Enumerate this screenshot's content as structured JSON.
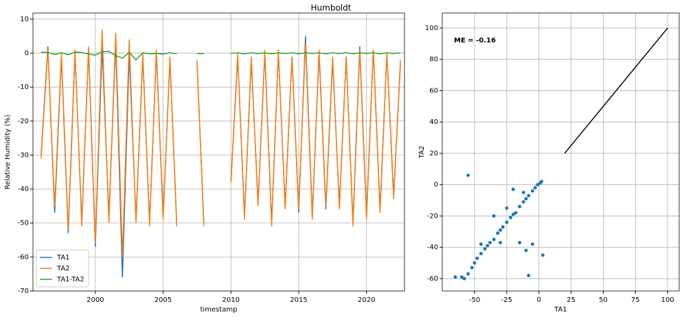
{
  "chart_data": [
    {
      "type": "line",
      "title": "Humboldt",
      "xlabel": "timestamp",
      "ylabel": "Relative Humidity (%)",
      "x": [
        1996,
        1996.5,
        1997,
        1997.5,
        1998,
        1998.5,
        1999,
        1999.5,
        2000,
        2000.5,
        2001,
        2001.5,
        2002,
        2002.5,
        2003,
        2003.5,
        2004,
        2004.5,
        2005,
        2005.5,
        2006,
        2006.5,
        2007,
        2007.5,
        2008,
        2008.5,
        2009,
        2009.5,
        2010,
        2010.5,
        2011,
        2011.5,
        2012,
        2012.5,
        2013,
        2013.5,
        2014,
        2014.5,
        2015,
        2015.5,
        2016,
        2016.5,
        2017,
        2017.5,
        2018,
        2018.5,
        2019,
        2019.5,
        2020,
        2020.5,
        2021,
        2021.5,
        2022,
        2022.5
      ],
      "series": [
        {
          "name": "TA1",
          "color": "#1f77b4",
          "values": [
            -30,
            2,
            -47,
            -1,
            -53,
            0,
            -50,
            1,
            -57,
            2,
            -48,
            3,
            -66,
            0,
            -49,
            -1,
            -50,
            0,
            -48,
            -2,
            -50,
            null,
            null,
            -3,
            -50,
            null,
            null,
            null,
            -38,
            -1,
            -48,
            -2,
            -44,
            0,
            -50,
            0,
            -45,
            -1,
            -47,
            5,
            -48,
            0,
            -46,
            -2,
            -45,
            -1,
            -50,
            2,
            -48,
            1,
            -46,
            0,
            -42,
            -3
          ]
        },
        {
          "name": "TA2",
          "color": "#ff7f0e",
          "values": [
            -31,
            1,
            -45,
            0,
            -52,
            1,
            -51,
            2,
            -56,
            7,
            -50,
            6,
            -60,
            4,
            -50,
            0,
            -51,
            1,
            -49,
            -1,
            -51,
            null,
            null,
            -2,
            -51,
            null,
            null,
            null,
            -38,
            0,
            -49,
            -1,
            -45,
            1,
            -51,
            1,
            -46,
            -1,
            -46,
            3,
            -49,
            1,
            -45,
            -1,
            -46,
            -1,
            -51,
            1,
            -49,
            1,
            -47,
            0,
            -43,
            -2
          ]
        },
        {
          "name": "TA1-TA2",
          "color": "#2ca02c",
          "values": [
            0.3,
            0.2,
            -0.4,
            0.1,
            -0.5,
            0.3,
            0.2,
            -0.3,
            -0.6,
            0.4,
            0.5,
            -0.7,
            -1.5,
            0.2,
            -2,
            0.1,
            -0.2,
            -0.1,
            -0.3,
            0.1,
            -0.2,
            null,
            null,
            -0.1,
            -0.2,
            null,
            null,
            null,
            -0.1,
            0.1,
            -0.2,
            0.1,
            -0.1,
            0.1,
            -0.2,
            0.1,
            -0.1,
            0.1,
            -0.2,
            0.1,
            -0.1,
            0.1,
            -0.2,
            0.1,
            -0.1,
            0.1,
            -0.2,
            0.1,
            -0.1,
            0.1,
            -0.2,
            0.1,
            -0.1,
            0.1
          ]
        }
      ],
      "xlim": [
        1995.4,
        2022.8
      ],
      "xticks": [
        2000,
        2005,
        2010,
        2015,
        2020
      ],
      "ylim": [
        -70,
        11.8
      ],
      "yticks": [
        10,
        0,
        -10,
        -20,
        -30,
        -40,
        -50,
        -60,
        -70
      ],
      "grid": true,
      "legend": "lower left"
    },
    {
      "type": "scatter",
      "xlabel": "TA1",
      "ylabel": "TA2",
      "annotation": "ME = -0.16",
      "color": "#1f77b4",
      "x": [
        -65,
        -60,
        -58,
        -55,
        -52,
        -50,
        -48,
        -45,
        -42,
        -40,
        -38,
        -35,
        -32,
        -30,
        -28,
        -25,
        -22,
        -20,
        -18,
        -15,
        -12,
        -10,
        -8,
        -5,
        -3,
        -1,
        1,
        2,
        -55,
        -30,
        -20,
        -10,
        -5,
        -35,
        -15,
        -8,
        -25,
        -12,
        3,
        -45
      ],
      "values": [
        -59,
        -59,
        -60,
        -57,
        -53,
        -50,
        -47,
        -44,
        -41,
        -39,
        -37,
        -35,
        -31,
        -29,
        -27,
        -24,
        -21,
        -19,
        -18,
        -14,
        -11,
        -9,
        -7,
        -4,
        -2,
        0,
        1,
        2,
        6,
        -37,
        -3,
        -42,
        -38,
        -20,
        -37,
        -58,
        -15,
        -5,
        -45,
        -38
      ],
      "line": {
        "color": "#000000",
        "x": [
          20,
          100
        ],
        "values": [
          20,
          100
        ]
      },
      "xlim": [
        -75.1,
        109
      ],
      "xticks": [
        -50,
        -25,
        0,
        25,
        50,
        75,
        100
      ],
      "ylim": [
        -67.9,
        109.6
      ],
      "yticks": [
        -60,
        -40,
        -20,
        0,
        20,
        40,
        60,
        80,
        100
      ],
      "grid": true
    }
  ]
}
